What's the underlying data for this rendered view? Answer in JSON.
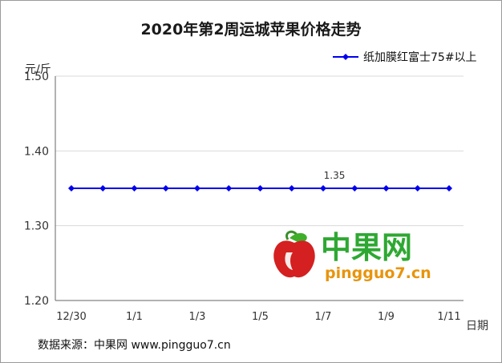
{
  "chart_data": {
    "type": "line",
    "title": "2020年第2周运城苹果价格走势",
    "ylabel": "元/斤",
    "xlabel": "日期",
    "ylim": [
      1.2,
      1.5
    ],
    "yticks": [
      "1.50",
      "1.40",
      "1.30",
      "1.20"
    ],
    "x_tick_labels": [
      "12/30",
      "1/1",
      "1/3",
      "1/5",
      "1/7",
      "1/9",
      "1/11"
    ],
    "x": [
      "12/30",
      "12/31",
      "1/1",
      "1/2",
      "1/3",
      "1/4",
      "1/5",
      "1/6",
      "1/7",
      "1/8",
      "1/9",
      "1/10",
      "1/11"
    ],
    "series": [
      {
        "name": "纸加膜红富士75#以上",
        "color": "#0000ee",
        "marker": "diamond",
        "values": [
          1.35,
          1.35,
          1.35,
          1.35,
          1.35,
          1.35,
          1.35,
          1.35,
          1.35,
          1.35,
          1.35,
          1.35,
          1.35
        ]
      }
    ],
    "data_labels": [
      {
        "x": "1/7",
        "text": "1.35"
      }
    ],
    "grid": "horizontal",
    "legend": "top-right"
  },
  "watermark": {
    "brand": "中果网",
    "site": "pingguo7.cn",
    "logo": "apple-logo-icon",
    "colors": {
      "brand": "#2ea832",
      "site": "#e8940c",
      "apple": "#d42020"
    }
  },
  "footer": {
    "source": "数据来源：中果网 www.pingguo7.cn"
  }
}
